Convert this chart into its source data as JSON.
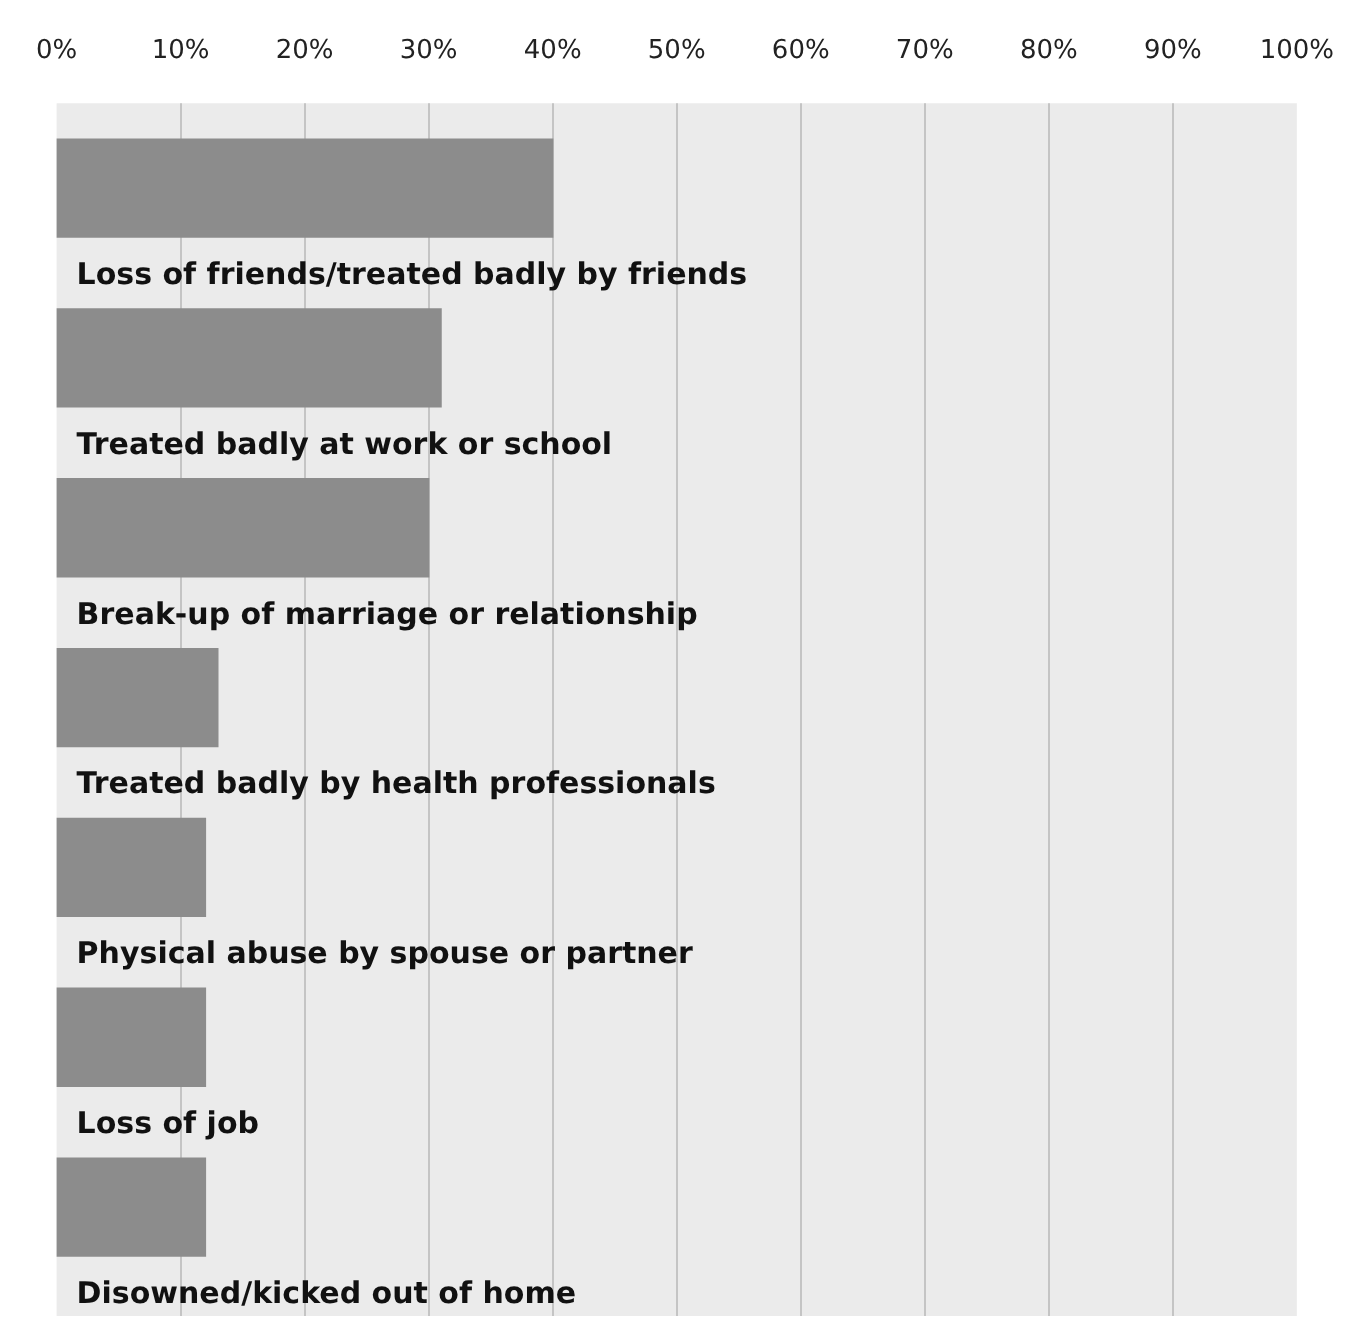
{
  "chart_data": {
    "type": "bar",
    "orientation": "horizontal",
    "categories": [
      "Loss of friends/treated badly by friends",
      "Treated badly at work or school",
      "Break-up of marriage or relationship",
      "Treated badly by health professionals",
      "Physical abuse by spouse or partner",
      "Loss of job",
      "Disowned/kicked out of home"
    ],
    "values": [
      40,
      31,
      30,
      13,
      12,
      12,
      12
    ],
    "color": "#8c8c8c",
    "xlim": [
      0,
      100
    ],
    "xticks": [
      {
        "value": 0,
        "label": "0%"
      },
      {
        "value": 10,
        "label": "10%"
      },
      {
        "value": 20,
        "label": "20%"
      },
      {
        "value": 30,
        "label": "30%"
      },
      {
        "value": 40,
        "label": "40%"
      },
      {
        "value": 50,
        "label": "50%"
      },
      {
        "value": 60,
        "label": "60%"
      },
      {
        "value": 70,
        "label": "70%"
      },
      {
        "value": 80,
        "label": "80%"
      },
      {
        "value": 90,
        "label": "90%"
      },
      {
        "value": 100,
        "label": "100%"
      }
    ],
    "grid": "x",
    "legend": false
  }
}
